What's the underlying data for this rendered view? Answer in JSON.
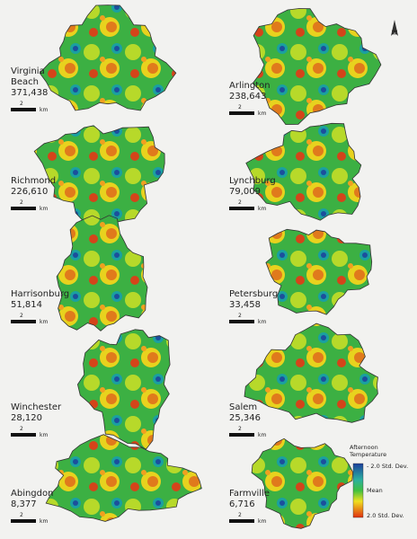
{
  "north_label": "N",
  "cities": [
    {
      "name": "Virginia Beach",
      "population": "371,438",
      "scale_value": "2",
      "scale_unit": "km"
    },
    {
      "name": "Arlington",
      "population": "238,643",
      "scale_value": "2",
      "scale_unit": "km"
    },
    {
      "name": "Richmond",
      "population": "226,610",
      "scale_value": "2",
      "scale_unit": "km"
    },
    {
      "name": "Lynchburg",
      "population": "79,009",
      "scale_value": "2",
      "scale_unit": "km"
    },
    {
      "name": "Harrisonburg",
      "population": "51,814",
      "scale_value": "2",
      "scale_unit": "km"
    },
    {
      "name": "Petersburg",
      "population": "33,458",
      "scale_value": "2",
      "scale_unit": "km"
    },
    {
      "name": "Winchester",
      "population": "28,120",
      "scale_value": "2",
      "scale_unit": "km"
    },
    {
      "name": "Salem",
      "population": "25,346",
      "scale_value": "2",
      "scale_unit": "km"
    },
    {
      "name": "Abingdon",
      "population": "8,377",
      "scale_value": "2",
      "scale_unit": "km"
    },
    {
      "name": "Farmville",
      "population": "6,716",
      "scale_value": "2",
      "scale_unit": "km"
    }
  ],
  "legend": {
    "title": "Afternoon Temperature",
    "low": "- 2.0 Std. Dev.",
    "mid": "Mean",
    "high": "2.0 Std. Dev."
  }
}
